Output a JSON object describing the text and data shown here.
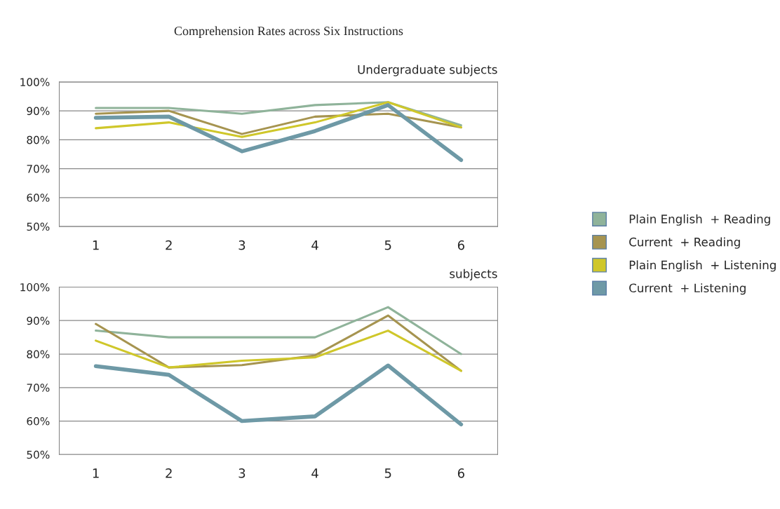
{
  "chart_data": [
    {
      "type": "line",
      "title": "Comprehension Rates across Six Instructions",
      "subtitle": "Undergraduate subjects",
      "categories": [
        "1",
        "2",
        "3",
        "4",
        "5",
        "6"
      ],
      "series": [
        {
          "name": "Plain English  + Reading",
          "color": "#8fb39a",
          "values": [
            91,
            91,
            89,
            92,
            93,
            85
          ]
        },
        {
          "name": "Current  + Reading",
          "color": "#a69450",
          "values": [
            89,
            90,
            82,
            88,
            89,
            84.3
          ]
        },
        {
          "name": "Plain English  + Listening",
          "color": "#cfc72a",
          "values": [
            84,
            86,
            81,
            86,
            93,
            84.3
          ]
        },
        {
          "name": "Current  + Listening",
          "color": "#6e99a6",
          "values": [
            87.6,
            88,
            76,
            83,
            92,
            73
          ]
        }
      ],
      "ylim": [
        50,
        100
      ],
      "yticks": [
        {
          "value": 50,
          "label": "50%"
        },
        {
          "value": 60,
          "label": "60%"
        },
        {
          "value": 70,
          "label": "70%"
        },
        {
          "value": 80,
          "label": "80%"
        },
        {
          "value": 90,
          "label": "90%"
        },
        {
          "value": 100,
          "label": "100%"
        }
      ],
      "grid": "y",
      "legend": "right",
      "marker": "none",
      "line_style": "solid"
    },
    {
      "type": "line",
      "subtitle": "subjects",
      "categories": [
        "1",
        "2",
        "3",
        "4",
        "5",
        "6"
      ],
      "series": [
        {
          "color": "#8fb39a",
          "values": [
            87,
            85,
            85,
            85,
            94,
            80
          ]
        },
        {
          "color": "#a69450",
          "values": [
            89,
            76,
            76.7,
            79.6,
            91.5,
            75
          ]
        },
        {
          "color": "#cfc72a",
          "values": [
            84,
            76,
            78,
            79,
            87,
            75
          ]
        },
        {
          "color": "#6e99a6",
          "values": [
            76.4,
            73.8,
            60,
            61.4,
            76.6,
            59
          ]
        }
      ],
      "ylim": [
        50,
        100
      ],
      "yticks": [
        {
          "value": 50,
          "label": "50%"
        },
        {
          "value": 60,
          "label": "60%"
        },
        {
          "value": 70,
          "label": "70%"
        },
        {
          "value": 80,
          "label": "80%"
        },
        {
          "value": 90,
          "label": "90%"
        },
        {
          "value": 100,
          "label": "100%"
        }
      ],
      "grid": "y",
      "legend": false,
      "marker": "none",
      "line_style": "solid"
    }
  ]
}
